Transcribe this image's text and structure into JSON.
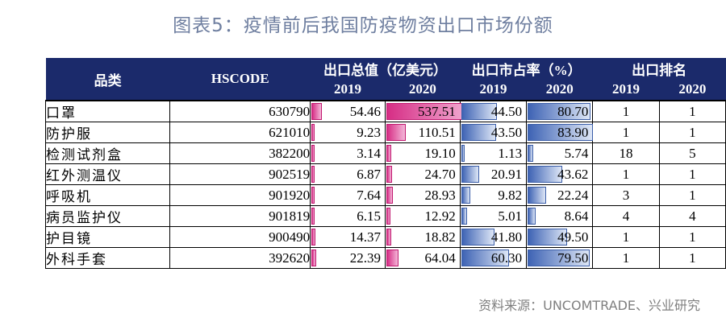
{
  "title": "图表5：疫情前后我国防疫物资出口市场份额",
  "headers": {
    "category": "品类",
    "hscode": "HSCODE",
    "export_value": "出口总值（亿美元）",
    "market_share": "出口市占率（%）",
    "rank": "出口排名",
    "years": [
      "2019",
      "2020"
    ]
  },
  "rows": [
    {
      "name": "口罩",
      "code": "630790",
      "v2019": "54.46",
      "v2020": "537.51",
      "s2019": "44.50",
      "s2020": "80.70",
      "r2019": "1",
      "r2020": "1"
    },
    {
      "name": "防护服",
      "code": "621010",
      "v2019": "9.23",
      "v2020": "110.51",
      "s2019": "43.50",
      "s2020": "83.90",
      "r2019": "1",
      "r2020": "1"
    },
    {
      "name": "检测试剂盒",
      "code": "382200",
      "v2019": "3.14",
      "v2020": "19.10",
      "s2019": "1.13",
      "s2020": "5.74",
      "r2019": "18",
      "r2020": "5"
    },
    {
      "name": "红外测温仪",
      "code": "902519",
      "v2019": "6.87",
      "v2020": "24.70",
      "s2019": "20.91",
      "s2020": "43.62",
      "r2019": "1",
      "r2020": "1"
    },
    {
      "name": "呼吸机",
      "code": "901920",
      "v2019": "7.64",
      "v2020": "28.93",
      "s2019": "9.82",
      "s2020": "22.24",
      "r2019": "3",
      "r2020": "1"
    },
    {
      "name": "病员监护仪",
      "code": "901819",
      "v2019": "6.15",
      "v2020": "12.92",
      "s2019": "5.01",
      "s2020": "8.64",
      "r2019": "4",
      "r2020": "4"
    },
    {
      "name": "护目镜",
      "code": "900490",
      "v2019": "14.37",
      "v2020": "18.82",
      "s2019": "41.80",
      "s2020": "49.50",
      "r2019": "1",
      "r2020": "1"
    },
    {
      "name": "外科手套",
      "code": "392620",
      "v2019": "22.39",
      "v2020": "64.04",
      "s2019": "60.30",
      "s2020": "79.50",
      "r2019": "1",
      "r2020": "1"
    }
  ],
  "bar_colors": {
    "value": "#d62d85",
    "share": "#3e63b4"
  },
  "source": "资料来源：UNCOMTRADE、兴业研究"
}
